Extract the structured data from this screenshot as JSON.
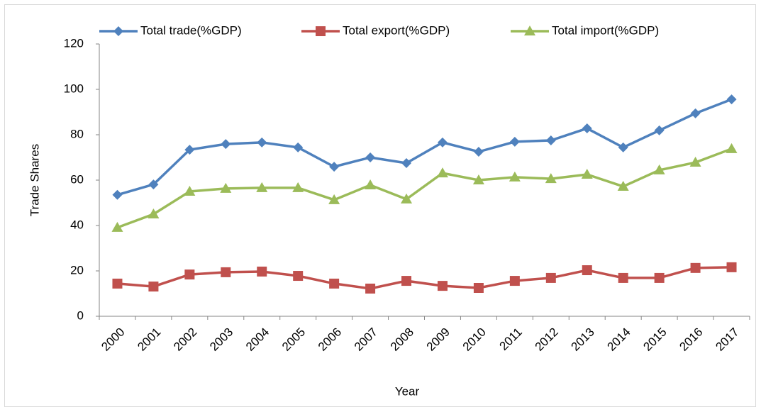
{
  "chart_data": {
    "type": "line",
    "x_label": "Year",
    "y_label": "Trade Shares",
    "categories": [
      "2000",
      "2001",
      "2002",
      "2003",
      "2004",
      "2005",
      "2006",
      "2007",
      "2008",
      "2009",
      "2010",
      "2011",
      "2012",
      "2013",
      "2014",
      "2015",
      "2016",
      "2017"
    ],
    "series": [
      {
        "name": "Total trade(%GDP)",
        "color": "#4f81bd",
        "marker": "diamond",
        "values": [
          53.5,
          58.1,
          73.4,
          75.9,
          76.6,
          74.4,
          65.9,
          70,
          67.5,
          76.6,
          72.5,
          76.9,
          77.5,
          82.8,
          74.4,
          81.9,
          89.4,
          95.6
        ]
      },
      {
        "name": "Total export(%GDP)",
        "color": "#c0504d",
        "marker": "square",
        "values": [
          14.4,
          13.1,
          18.4,
          19.4,
          19.7,
          17.8,
          14.4,
          12.2,
          15.6,
          13.4,
          12.5,
          15.6,
          16.9,
          20.3,
          16.9,
          16.9,
          21.3,
          21.6
        ]
      },
      {
        "name": "Total import(%GDP)",
        "color": "#9bbb59",
        "marker": "triangle",
        "values": [
          39.1,
          45,
          55,
          56.3,
          56.6,
          56.6,
          51.3,
          57.8,
          51.6,
          63.1,
          60,
          61.3,
          60.6,
          62.5,
          57.2,
          64.4,
          67.8,
          73.8
        ]
      }
    ],
    "ylim": [
      0,
      120
    ],
    "yticks": [
      0,
      20,
      40,
      60,
      80,
      100,
      120
    ],
    "grid": false,
    "legend": "top"
  }
}
